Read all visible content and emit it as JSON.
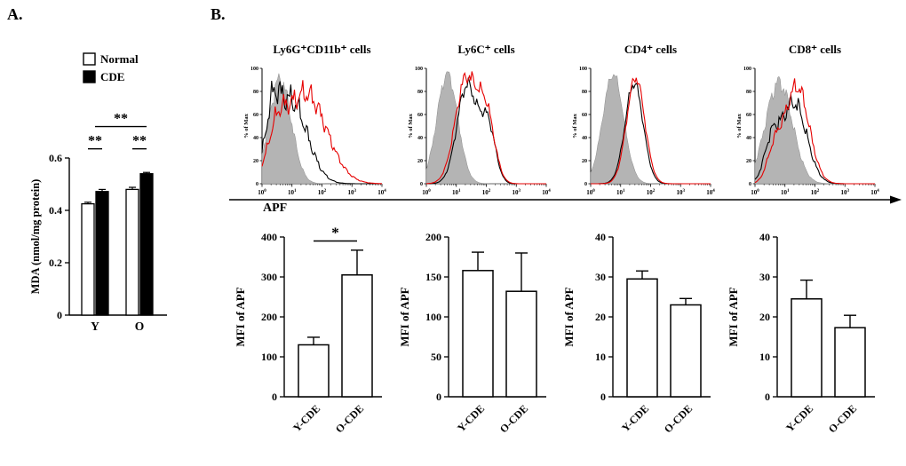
{
  "labels": {
    "panel_a": "A.",
    "panel_b": "B.",
    "apf_axis": "APF"
  },
  "colors": {
    "normal_fill": "#ffffff",
    "cde_fill": "#000000",
    "shaded_histogram": "#b4b4b4",
    "black_trace": "#000000",
    "red_trace": "#e60000"
  },
  "chart_data": [
    {
      "type": "bar",
      "subtype": "grouped",
      "ylabel": "MDA (nmol/mg protein)",
      "ylim": [
        0,
        0.6
      ],
      "yticks": [
        0,
        0.2,
        0.4,
        0.6
      ],
      "categories": [
        "Y",
        "O"
      ],
      "series": [
        {
          "name": "Normal",
          "fill": "#ffffff",
          "values": [
            0.425,
            0.48
          ],
          "errors": [
            0.006,
            0.008
          ]
        },
        {
          "name": "CDE",
          "fill": "#000000",
          "values": [
            0.472,
            0.54
          ],
          "errors": [
            0.008,
            0.005
          ]
        }
      ],
      "significance": [
        {
          "x1": {
            "group": 0,
            "series": 0
          },
          "x2": {
            "group": 0,
            "series": 1
          },
          "y": 0.635,
          "label": "**"
        },
        {
          "x1": {
            "group": 1,
            "series": 0
          },
          "x2": {
            "group": 1,
            "series": 1
          },
          "y": 0.635,
          "label": "**"
        },
        {
          "x1": {
            "group": 0
          },
          "x2": {
            "group": 1,
            "series": 1
          },
          "y": 0.72,
          "label": "**"
        }
      ]
    },
    {
      "type": "histogram",
      "title": "Ly6G⁺CD11b⁺ cells",
      "ylabel": "% of Max",
      "ylim": [
        0,
        100
      ],
      "yticks": [
        0,
        20,
        40,
        60,
        80,
        100
      ],
      "xscale": "log10",
      "xticks_exponents": [
        0,
        1,
        2,
        3,
        4
      ],
      "curves": [
        {
          "name": "shaded-control",
          "style": "fill",
          "color": "#b4b4b4",
          "peaks": [
            {
              "m": 0.6,
              "s": 0.38,
              "a": 90
            }
          ],
          "noise": 0.13,
          "seed": 3
        },
        {
          "name": "black-trace",
          "style": "line",
          "color": "#000000",
          "peaks": [
            {
              "m": 0.95,
              "s": 0.55,
              "a": 72
            },
            {
              "m": 0.35,
              "s": 0.22,
              "a": 38
            }
          ],
          "noise": 0.22,
          "seed": 7
        },
        {
          "name": "red-trace",
          "style": "line",
          "color": "#e60000",
          "peaks": [
            {
              "m": 1.45,
              "s": 0.7,
              "a": 78
            },
            {
              "m": 0.5,
              "s": 0.3,
              "a": 30
            }
          ],
          "noise": 0.18,
          "seed": 11
        }
      ]
    },
    {
      "type": "histogram",
      "title": "Ly6C⁺ cells",
      "ylabel": "% of Max",
      "ylim": [
        0,
        100
      ],
      "yticks": [
        0,
        20,
        40,
        60,
        80,
        100
      ],
      "xscale": "log10",
      "xticks_exponents": [
        0,
        1,
        2,
        3,
        4
      ],
      "curves": [
        {
          "name": "shaded-control",
          "style": "fill",
          "color": "#b4b4b4",
          "peaks": [
            {
              "m": 0.7,
              "s": 0.35,
              "a": 95
            }
          ],
          "noise": 0.08,
          "seed": 5
        },
        {
          "name": "black-trace",
          "style": "line",
          "color": "#000000",
          "peaks": [
            {
              "m": 1.35,
              "s": 0.33,
              "a": 85
            },
            {
              "m": 2.05,
              "s": 0.25,
              "a": 50
            }
          ],
          "noise": 0.1,
          "seed": 9
        },
        {
          "name": "red-trace",
          "style": "line",
          "color": "#e60000",
          "peaks": [
            {
              "m": 1.32,
              "s": 0.36,
              "a": 90
            },
            {
              "m": 2.0,
              "s": 0.28,
              "a": 57
            }
          ],
          "noise": 0.1,
          "seed": 13
        }
      ]
    },
    {
      "type": "histogram",
      "title": "CD4⁺ cells",
      "ylabel": "% of Max",
      "ylim": [
        0,
        100
      ],
      "yticks": [
        0,
        20,
        40,
        60,
        80,
        100
      ],
      "xscale": "log10",
      "xticks_exponents": [
        0,
        1,
        2,
        3,
        4
      ],
      "curves": [
        {
          "name": "shaded-control",
          "style": "fill",
          "color": "#b4b4b4",
          "peaks": [
            {
              "m": 0.75,
              "s": 0.35,
              "a": 95
            }
          ],
          "noise": 0.06,
          "seed": 2
        },
        {
          "name": "black-trace",
          "style": "line",
          "color": "#000000",
          "peaks": [
            {
              "m": 1.45,
              "s": 0.3,
              "a": 87
            }
          ],
          "noise": 0.07,
          "seed": 6
        },
        {
          "name": "red-trace",
          "style": "line",
          "color": "#e60000",
          "peaks": [
            {
              "m": 1.5,
              "s": 0.3,
              "a": 92
            }
          ],
          "noise": 0.07,
          "seed": 10
        }
      ]
    },
    {
      "type": "histogram",
      "title": "CD8⁺ cells",
      "ylabel": "% of Max",
      "ylim": [
        0,
        100
      ],
      "yticks": [
        0,
        20,
        40,
        60,
        80,
        100
      ],
      "xscale": "log10",
      "xticks_exponents": [
        0,
        1,
        2,
        3,
        4
      ],
      "curves": [
        {
          "name": "shaded-control",
          "style": "fill",
          "color": "#b4b4b4",
          "peaks": [
            {
              "m": 0.8,
              "s": 0.45,
              "a": 88
            }
          ],
          "noise": 0.12,
          "seed": 4
        },
        {
          "name": "black-trace",
          "style": "line",
          "color": "#000000",
          "peaks": [
            {
              "m": 1.3,
              "s": 0.42,
              "a": 70
            },
            {
              "m": 0.55,
              "s": 0.25,
              "a": 32
            }
          ],
          "noise": 0.16,
          "seed": 8
        },
        {
          "name": "red-trace",
          "style": "line",
          "color": "#e60000",
          "peaks": [
            {
              "m": 1.4,
              "s": 0.4,
              "a": 84
            },
            {
              "m": 0.65,
              "s": 0.25,
              "a": 26
            }
          ],
          "noise": 0.13,
          "seed": 12
        }
      ]
    },
    {
      "type": "bar",
      "ylabel": "MFI of APF",
      "ylim": [
        0,
        400
      ],
      "yticks": [
        0,
        100,
        200,
        300,
        400
      ],
      "categories": [
        "Y-CDE",
        "O-CDE"
      ],
      "values": [
        130,
        305
      ],
      "errors": [
        19,
        62
      ],
      "significance": [
        {
          "x1": 0,
          "x2": 1,
          "y": 390,
          "label": "*"
        }
      ]
    },
    {
      "type": "bar",
      "ylabel": "MFI of APF",
      "ylim": [
        0,
        200
      ],
      "yticks": [
        0,
        50,
        100,
        150,
        200
      ],
      "categories": [
        "Y-CDE",
        "O-CDE"
      ],
      "values": [
        158,
        132
      ],
      "errors": [
        23,
        48
      ],
      "significance": []
    },
    {
      "type": "bar",
      "ylabel": "MFI of APF",
      "ylim": [
        0,
        40
      ],
      "yticks": [
        0,
        10,
        20,
        30,
        40
      ],
      "categories": [
        "Y-CDE",
        "O-CDE"
      ],
      "values": [
        29.5,
        23
      ],
      "errors": [
        2,
        1.6
      ],
      "significance": []
    },
    {
      "type": "bar",
      "ylabel": "MFI of APF",
      "ylim": [
        0,
        40
      ],
      "yticks": [
        0,
        10,
        20,
        30,
        40
      ],
      "categories": [
        "Y-CDE",
        "O-CDE"
      ],
      "values": [
        24.5,
        17.3
      ],
      "errors": [
        4.7,
        3.1
      ],
      "significance": []
    }
  ]
}
